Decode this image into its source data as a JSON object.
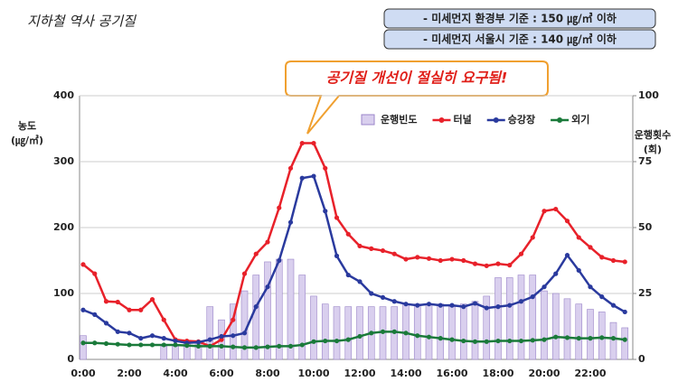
{
  "chart_data": {
    "type": "combo",
    "title": "지하철 역사 공기질",
    "notes": [
      "- 미세먼지 환경부 기준 : 150 ㎍/㎥ 이하",
      "- 미세먼지 서울시 기준 : 140 ㎍/㎥ 이하"
    ],
    "callout": "공기질 개선이 절실히 요구됨!",
    "ylabel": [
      "농도",
      "(㎍/㎥)"
    ],
    "y2label": [
      "운행횟수",
      "(회)"
    ],
    "categories": [
      "0:00",
      null,
      null,
      null,
      "2:00",
      null,
      null,
      null,
      "4:00",
      null,
      null,
      null,
      "6:00",
      null,
      null,
      null,
      "8:00",
      null,
      null,
      null,
      "10:00",
      null,
      null,
      null,
      "12:00",
      null,
      null,
      null,
      "14:00",
      null,
      null,
      null,
      "16:00",
      null,
      null,
      null,
      "18:00",
      null,
      null,
      null,
      "20:00",
      null,
      null,
      null,
      "22:00",
      null,
      null,
      null
    ],
    "ylim": [
      0,
      400
    ],
    "yticks": [
      0,
      100,
      200,
      300,
      400
    ],
    "y2lim": [
      0,
      100
    ],
    "y2ticks": [
      0,
      25,
      50,
      75,
      100
    ],
    "series": [
      {
        "name": "운행빈도",
        "type": "bar",
        "axis": "y2",
        "color": "#d9cfee",
        "values": [
          9,
          0,
          0,
          0,
          0,
          0,
          0,
          5,
          5,
          6,
          7,
          20,
          15,
          21,
          26,
          32,
          37,
          38,
          38,
          32,
          24,
          21,
          20,
          20,
          20,
          20,
          20,
          20,
          21,
          21,
          21,
          21,
          20,
          21,
          22,
          24,
          31,
          31,
          32,
          32,
          26,
          25,
          23,
          21,
          19,
          18,
          14,
          12
        ]
      },
      {
        "name": "터널",
        "type": "line",
        "color": "#e8212a",
        "values": [
          144,
          130,
          88,
          87,
          75,
          75,
          91,
          60,
          30,
          28,
          27,
          20,
          30,
          60,
          130,
          160,
          178,
          230,
          290,
          328,
          328,
          290,
          215,
          190,
          172,
          168,
          165,
          160,
          152,
          155,
          153,
          150,
          152,
          150,
          145,
          142,
          145,
          143,
          160,
          185,
          225,
          228,
          210,
          185,
          170,
          155,
          150,
          148
        ]
      },
      {
        "name": "승강장",
        "type": "line",
        "color": "#2a3a9e",
        "values": [
          75,
          68,
          55,
          42,
          40,
          32,
          36,
          32,
          28,
          25,
          26,
          30,
          35,
          36,
          40,
          80,
          110,
          150,
          208,
          275,
          278,
          225,
          157,
          128,
          118,
          100,
          94,
          88,
          84,
          82,
          84,
          82,
          82,
          80,
          85,
          78,
          80,
          82,
          88,
          95,
          110,
          130,
          158,
          135,
          110,
          95,
          82,
          72
        ]
      },
      {
        "name": "외기",
        "type": "line",
        "color": "#1a7a3a",
        "values": [
          25,
          25,
          24,
          23,
          22,
          22,
          22,
          22,
          22,
          21,
          20,
          20,
          20,
          19,
          18,
          18,
          19,
          20,
          20,
          22,
          27,
          28,
          28,
          30,
          35,
          40,
          42,
          42,
          40,
          36,
          34,
          32,
          30,
          28,
          27,
          27,
          28,
          28,
          28,
          29,
          30,
          34,
          33,
          32,
          32,
          33,
          32,
          30
        ]
      }
    ]
  }
}
